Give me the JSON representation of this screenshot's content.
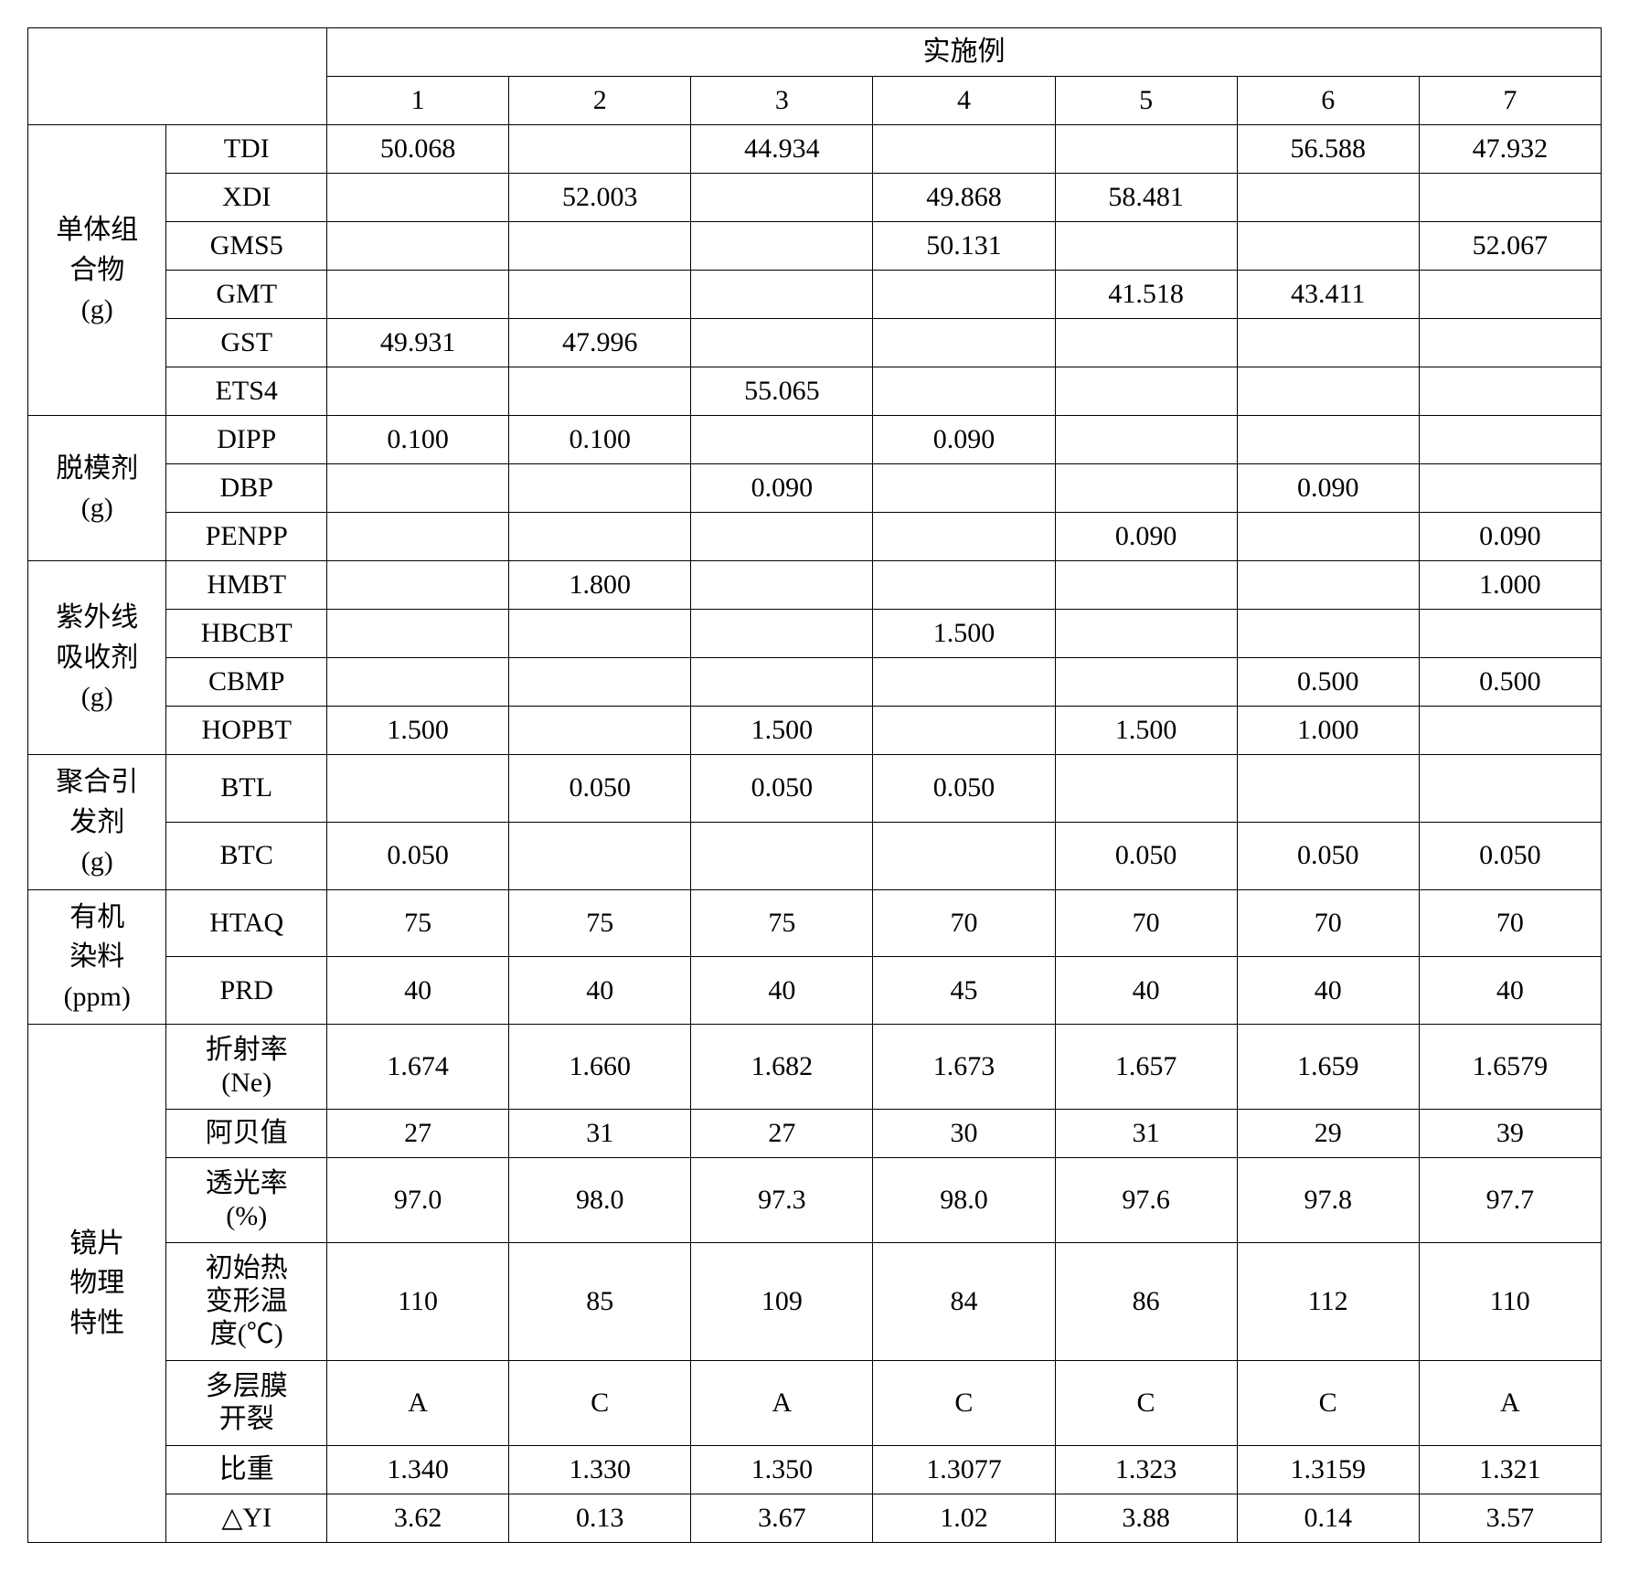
{
  "header": {
    "top": "实施例",
    "cols": [
      "1",
      "2",
      "3",
      "4",
      "5",
      "6",
      "7"
    ]
  },
  "groups": [
    {
      "label": "单体组\n合物\n(g)",
      "rows": [
        {
          "sub": "TDI",
          "v": [
            "50.068",
            "",
            "44.934",
            "",
            "",
            "56.588",
            "47.932"
          ]
        },
        {
          "sub": "XDI",
          "v": [
            "",
            "52.003",
            "",
            "49.868",
            "58.481",
            "",
            ""
          ]
        },
        {
          "sub": "GMS5",
          "v": [
            "",
            "",
            "",
            "50.131",
            "",
            "",
            "52.067"
          ]
        },
        {
          "sub": "GMT",
          "v": [
            "",
            "",
            "",
            "",
            "41.518",
            "43.411",
            ""
          ]
        },
        {
          "sub": "GST",
          "v": [
            "49.931",
            "47.996",
            "",
            "",
            "",
            "",
            ""
          ]
        },
        {
          "sub": "ETS4",
          "v": [
            "",
            "",
            "55.065",
            "",
            "",
            "",
            ""
          ]
        }
      ]
    },
    {
      "label": "脱模剂\n(g)",
      "rows": [
        {
          "sub": "DIPP",
          "v": [
            "0.100",
            "0.100",
            "",
            "0.090",
            "",
            "",
            ""
          ]
        },
        {
          "sub": "DBP",
          "v": [
            "",
            "",
            "0.090",
            "",
            "",
            "0.090",
            ""
          ]
        },
        {
          "sub": "PENPP",
          "v": [
            "",
            "",
            "",
            "",
            "0.090",
            "",
            "0.090"
          ]
        }
      ]
    },
    {
      "label": "紫外线\n吸收剂\n(g)",
      "rows": [
        {
          "sub": "HMBT",
          "v": [
            "",
            "1.800",
            "",
            "",
            "",
            "",
            "1.000"
          ]
        },
        {
          "sub": "HBCBT",
          "v": [
            "",
            "",
            "",
            "1.500",
            "",
            "",
            ""
          ]
        },
        {
          "sub": "CBMP",
          "v": [
            "",
            "",
            "",
            "",
            "",
            "0.500",
            "0.500"
          ]
        },
        {
          "sub": "HOPBT",
          "v": [
            "1.500",
            "",
            "1.500",
            "",
            "1.500",
            "1.000",
            ""
          ]
        }
      ]
    },
    {
      "label": "聚合引\n发剂\n(g)",
      "rows": [
        {
          "sub": "BTL",
          "v": [
            "",
            "0.050",
            "0.050",
            "0.050",
            "",
            "",
            ""
          ]
        },
        {
          "sub": "BTC",
          "v": [
            "0.050",
            "",
            "",
            "",
            "0.050",
            "0.050",
            "0.050"
          ]
        }
      ]
    },
    {
      "label": "有机\n染料\n(ppm)",
      "rows": [
        {
          "sub": "HTAQ",
          "v": [
            "75",
            "75",
            "75",
            "70",
            "70",
            "70",
            "70"
          ]
        },
        {
          "sub": "PRD",
          "v": [
            "40",
            "40",
            "40",
            "45",
            "40",
            "40",
            "40"
          ]
        }
      ]
    },
    {
      "label": "镜片\n物理\n特性",
      "rows": [
        {
          "sub": "折射率\n(Ne)",
          "v": [
            "1.674",
            "1.660",
            "1.682",
            "1.673",
            "1.657",
            "1.659",
            "1.6579"
          ]
        },
        {
          "sub": "阿贝值",
          "v": [
            "27",
            "31",
            "27",
            "30",
            "31",
            "29",
            "39"
          ]
        },
        {
          "sub": "透光率\n(%)",
          "v": [
            "97.0",
            "98.0",
            "97.3",
            "98.0",
            "97.6",
            "97.8",
            "97.7"
          ]
        },
        {
          "sub": "初始热\n变形温\n度(℃)",
          "v": [
            "110",
            "85",
            "109",
            "84",
            "86",
            "112",
            "110"
          ]
        },
        {
          "sub": "多层膜\n开裂",
          "v": [
            "A",
            "C",
            "A",
            "C",
            "C",
            "C",
            "A"
          ]
        },
        {
          "sub": "比重",
          "v": [
            "1.340",
            "1.330",
            "1.350",
            "1.3077",
            "1.323",
            "1.3159",
            "1.321"
          ]
        },
        {
          "sub": "△YI",
          "v": [
            "3.62",
            "0.13",
            "3.67",
            "1.02",
            "3.88",
            "0.14",
            "3.57"
          ]
        }
      ]
    }
  ]
}
